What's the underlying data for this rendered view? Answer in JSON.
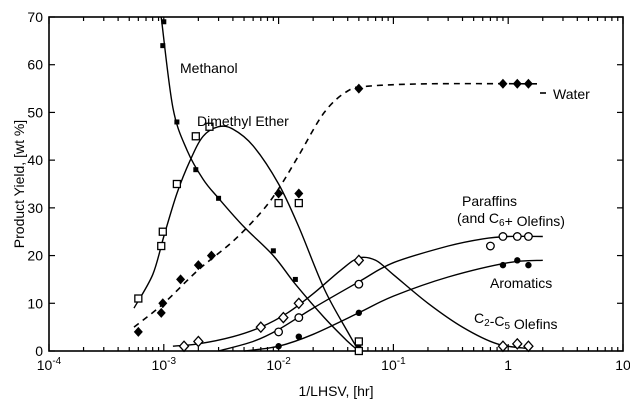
{
  "chart_data": {
    "type": "scatter",
    "xscale": "log",
    "xlim": [
      0.0001,
      10
    ],
    "ylim": [
      0,
      70
    ],
    "xlabel": "1/LHSV, [hr]",
    "ylabel": "Product Yield, [wt %]",
    "xticks": [
      {
        "value": 0.0001,
        "base": "10",
        "exp": "-4"
      },
      {
        "value": 0.001,
        "base": "10",
        "exp": "-3"
      },
      {
        "value": 0.01,
        "base": "10",
        "exp": "-2"
      },
      {
        "value": 0.1,
        "base": "10",
        "exp": "-1"
      },
      {
        "value": 1,
        "base": "1",
        "exp": ""
      },
      {
        "value": 10,
        "base": "10",
        "exp": ""
      }
    ],
    "yticks": [
      0,
      10,
      20,
      30,
      40,
      50,
      60,
      70
    ],
    "series": [
      {
        "name": "Methanol",
        "label_parts": [
          {
            "text": "Methanol"
          }
        ],
        "marker": "small-square",
        "line": "solid",
        "points": [
          [
            0.00098,
            64
          ],
          [
            0.001,
            69
          ],
          [
            0.0013,
            48
          ],
          [
            0.0019,
            38
          ],
          [
            0.003,
            32
          ],
          [
            0.009,
            21
          ],
          [
            0.014,
            15
          ],
          [
            0.05,
            1
          ]
        ],
        "curve": [
          [
            0.00095,
            70
          ],
          [
            0.0012,
            51
          ],
          [
            0.0016,
            42
          ],
          [
            0.0022,
            36
          ],
          [
            0.003,
            32
          ],
          [
            0.005,
            26
          ],
          [
            0.009,
            20
          ],
          [
            0.014,
            14
          ],
          [
            0.025,
            7
          ],
          [
            0.04,
            2
          ],
          [
            0.05,
            0
          ]
        ]
      },
      {
        "name": "Dimethyl Ether",
        "label_parts": [
          {
            "text": "Dimethyl Ether"
          }
        ],
        "marker": "open-square",
        "line": "solid",
        "points": [
          [
            0.0006,
            11
          ],
          [
            0.00095,
            22
          ],
          [
            0.00098,
            25
          ],
          [
            0.0013,
            35
          ],
          [
            0.0019,
            45
          ],
          [
            0.0025,
            47
          ],
          [
            0.01,
            31
          ],
          [
            0.015,
            31
          ],
          [
            0.05,
            2
          ],
          [
            0.05,
            0
          ]
        ],
        "curve": [
          [
            0.00055,
            9
          ],
          [
            0.0008,
            16
          ],
          [
            0.001,
            24
          ],
          [
            0.0013,
            33
          ],
          [
            0.0017,
            40
          ],
          [
            0.0022,
            45
          ],
          [
            0.003,
            47
          ],
          [
            0.004,
            46.5
          ],
          [
            0.006,
            43
          ],
          [
            0.01,
            35
          ],
          [
            0.015,
            26
          ],
          [
            0.025,
            13
          ],
          [
            0.04,
            4
          ],
          [
            0.05,
            0
          ]
        ]
      },
      {
        "name": "Water",
        "label_parts": [
          {
            "text": "Water"
          }
        ],
        "marker": "filled-diamond",
        "line": "dashed",
        "points": [
          [
            0.0006,
            4
          ],
          [
            0.00095,
            8
          ],
          [
            0.00098,
            10
          ],
          [
            0.0014,
            15
          ],
          [
            0.002,
            18
          ],
          [
            0.0026,
            20
          ],
          [
            0.01,
            33
          ],
          [
            0.015,
            33
          ],
          [
            0.05,
            55
          ],
          [
            0.9,
            56
          ],
          [
            1.2,
            56
          ],
          [
            1.5,
            56
          ]
        ],
        "curve": [
          [
            0.00055,
            5
          ],
          [
            0.001,
            10
          ],
          [
            0.002,
            17
          ],
          [
            0.004,
            23
          ],
          [
            0.007,
            29
          ],
          [
            0.01,
            34
          ],
          [
            0.015,
            41
          ],
          [
            0.025,
            50
          ],
          [
            0.04,
            54.5
          ],
          [
            0.06,
            55.5
          ],
          [
            0.2,
            56
          ],
          [
            1.8,
            56
          ]
        ]
      },
      {
        "name": "Paraffins (and C6+ Olefins)",
        "label_parts": [
          {
            "text": "Paraffins"
          },
          {
            "text": "(and C"
          },
          {
            "text": "6"
          },
          {
            "text": "+ Olefins)"
          }
        ],
        "marker": "open-circle",
        "line": "solid",
        "points": [
          [
            0.01,
            4
          ],
          [
            0.015,
            7
          ],
          [
            0.05,
            14
          ],
          [
            0.7,
            22
          ],
          [
            0.9,
            24
          ],
          [
            1.2,
            24
          ],
          [
            1.5,
            24
          ]
        ],
        "curve": [
          [
            0.003,
            0
          ],
          [
            0.006,
            2
          ],
          [
            0.01,
            4.5
          ],
          [
            0.02,
            9
          ],
          [
            0.05,
            14.5
          ],
          [
            0.1,
            18.5
          ],
          [
            0.3,
            22
          ],
          [
            0.6,
            23.5
          ],
          [
            1,
            24
          ],
          [
            2,
            24
          ]
        ]
      },
      {
        "name": "Aromatics",
        "label_parts": [
          {
            "text": "Aromatics"
          }
        ],
        "marker": "filled-circle",
        "line": "solid",
        "points": [
          [
            0.01,
            1
          ],
          [
            0.015,
            3
          ],
          [
            0.05,
            8
          ],
          [
            0.9,
            18
          ],
          [
            1.2,
            19
          ],
          [
            1.5,
            18
          ]
        ],
        "curve": [
          [
            0.005,
            0
          ],
          [
            0.01,
            1
          ],
          [
            0.02,
            3.5
          ],
          [
            0.05,
            8
          ],
          [
            0.1,
            11.5
          ],
          [
            0.3,
            15.5
          ],
          [
            1,
            18.5
          ],
          [
            2,
            19
          ]
        ]
      },
      {
        "name": "C2-C5 Olefins",
        "label_parts": [
          {
            "text": "C"
          },
          {
            "text": "2"
          },
          {
            "text": "-C"
          },
          {
            "text": "5"
          },
          {
            "text": " Olefins"
          }
        ],
        "marker": "open-diamond",
        "line": "solid",
        "points": [
          [
            0.0015,
            1
          ],
          [
            0.002,
            2
          ],
          [
            0.007,
            5
          ],
          [
            0.011,
            7
          ],
          [
            0.015,
            10
          ],
          [
            0.05,
            19
          ],
          [
            0.9,
            1
          ],
          [
            1.2,
            1.5
          ],
          [
            1.5,
            1
          ]
        ],
        "curve": [
          [
            0.0012,
            1
          ],
          [
            0.002,
            1.5
          ],
          [
            0.004,
            3
          ],
          [
            0.007,
            5
          ],
          [
            0.012,
            8
          ],
          [
            0.02,
            12
          ],
          [
            0.035,
            17
          ],
          [
            0.05,
            19.5
          ],
          [
            0.07,
            19
          ],
          [
            0.1,
            16
          ],
          [
            0.2,
            10
          ],
          [
            0.4,
            5
          ],
          [
            0.8,
            1.5
          ],
          [
            1.5,
            0.5
          ]
        ]
      }
    ]
  }
}
